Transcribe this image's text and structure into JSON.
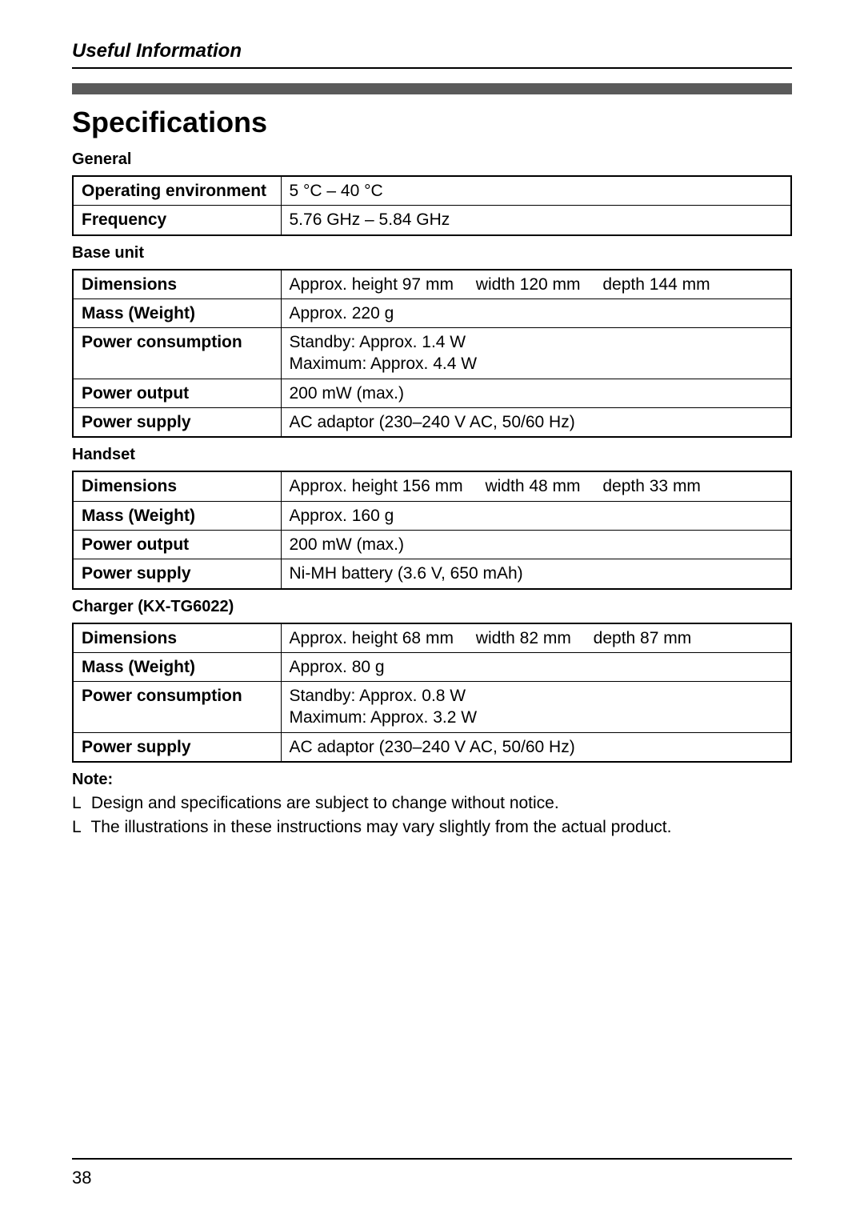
{
  "header": {
    "section": "Useful Information",
    "title": "Specifications"
  },
  "sections": {
    "general": {
      "title": "General",
      "rows": {
        "operating_env": {
          "label": "Operating environment",
          "value": "5 °C – 40 °C"
        },
        "frequency": {
          "label": "Frequency",
          "value": "5.76 GHz – 5.84 GHz"
        }
      }
    },
    "base_unit": {
      "title": "Base unit",
      "rows": {
        "dimensions": {
          "label": "Dimensions",
          "height": "Approx. height 97 mm",
          "width": "width 120 mm",
          "depth": "depth 144 mm"
        },
        "mass": {
          "label": "Mass (Weight)",
          "value": "Approx. 220 g"
        },
        "power_consumption": {
          "label": "Power consumption",
          "line1": "Standby: Approx. 1.4 W",
          "line2": "Maximum: Approx. 4.4 W"
        },
        "power_output": {
          "label": "Power output",
          "value": "200 mW (max.)"
        },
        "power_supply": {
          "label": "Power supply",
          "value": "AC adaptor (230–240 V AC, 50/60 Hz)"
        }
      }
    },
    "handset": {
      "title": "Handset",
      "rows": {
        "dimensions": {
          "label": "Dimensions",
          "height": "Approx. height 156 mm",
          "width": "width 48 mm",
          "depth": "depth 33 mm"
        },
        "mass": {
          "label": "Mass (Weight)",
          "value": "Approx. 160 g"
        },
        "power_output": {
          "label": "Power output",
          "value": "200 mW (max.)"
        },
        "power_supply": {
          "label": "Power supply",
          "value": "Ni-MH battery (3.6 V, 650 mAh)"
        }
      }
    },
    "charger": {
      "title": "Charger (KX-TG6022)",
      "rows": {
        "dimensions": {
          "label": "Dimensions",
          "height": "Approx. height 68 mm",
          "width": "width 82 mm",
          "depth": "depth 87 mm"
        },
        "mass": {
          "label": "Mass (Weight)",
          "value": "Approx. 80 g"
        },
        "power_consumption": {
          "label": "Power consumption",
          "line1": "Standby: Approx. 0.8 W",
          "line2": "Maximum: Approx. 3.2 W"
        },
        "power_supply": {
          "label": "Power supply",
          "value": "AC adaptor (230–240 V AC, 50/60 Hz)"
        }
      }
    }
  },
  "notes": {
    "title": "Note:",
    "bullet": "L",
    "items": {
      "n1": "Design and specifications are subject to change without notice.",
      "n2": "The illustrations in these instructions may vary slightly from the actual product."
    }
  },
  "footer": {
    "page_number": "38"
  }
}
